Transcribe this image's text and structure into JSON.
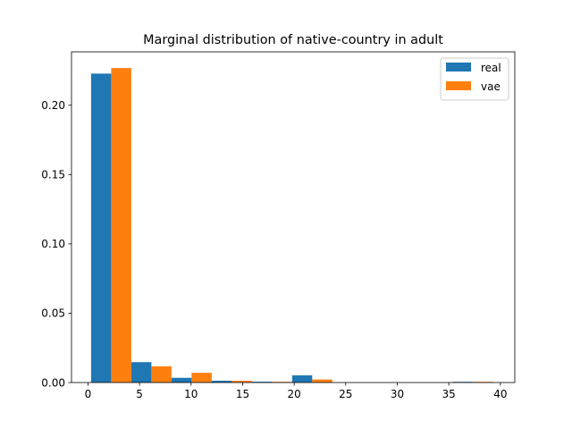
{
  "chart_data": {
    "type": "bar",
    "title": "Marginal distribution of native-country in adult",
    "xlabel": "",
    "ylabel": "",
    "xlim": [
      -1.6,
      41.4
    ],
    "ylim": [
      0,
      0.2385
    ],
    "xticks": [
      0,
      5,
      10,
      15,
      20,
      25,
      30,
      35,
      40
    ],
    "xtick_labels": [
      "0",
      "5",
      "10",
      "15",
      "20",
      "25",
      "30",
      "35",
      "40"
    ],
    "yticks": [
      0.0,
      0.05,
      0.1,
      0.15,
      0.2
    ],
    "ytick_labels": [
      "0.00",
      "0.05",
      "0.10",
      "0.15",
      "0.20"
    ],
    "bin_edges": [
      0.3,
      4.2,
      8.1,
      12.0,
      15.9,
      19.8,
      23.7,
      27.6,
      31.5,
      35.4,
      39.3
    ],
    "legend_position": "upper right",
    "series": [
      {
        "name": "real",
        "color": "#1f77b4",
        "values": [
          0.2228,
          0.0147,
          0.0034,
          0.0013,
          0.0006,
          0.0052,
          0.0,
          0.0,
          0.0,
          0.0005
        ]
      },
      {
        "name": "vae",
        "color": "#ff7f0e",
        "values": [
          0.2268,
          0.0117,
          0.007,
          0.0013,
          0.0005,
          0.0022,
          0.0,
          0.0,
          0.0,
          0.0005
        ]
      }
    ]
  }
}
